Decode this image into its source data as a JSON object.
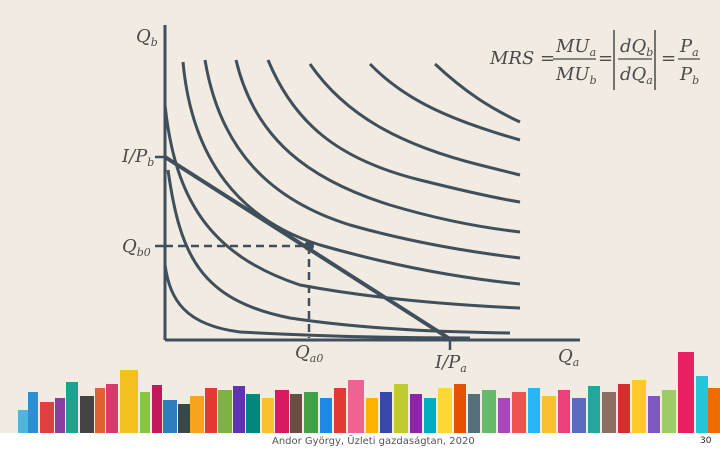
{
  "colors": {
    "background": "#f2ebe2",
    "curve": "#3f4f5c",
    "text": "#4a4a4a"
  },
  "axes": {
    "y_label_main": "Q",
    "y_label_sub": "b",
    "x_label_main": "Q",
    "x_label_sub": "a"
  },
  "annotations": {
    "income_b_main": "I/P",
    "income_b_sub": "b",
    "income_a_main": "I/P",
    "income_a_sub": "a",
    "qb0_main": "Q",
    "qb0_sub": "b0",
    "qa0_main": "Q",
    "qa0_sub": "a0"
  },
  "formula": {
    "lhs": "MRS =",
    "num1_main": "MU",
    "num1_sub": "a",
    "den1_main": "MU",
    "den1_sub": "b",
    "eq": "=",
    "num2_main": "dQ",
    "num2_sub": "b",
    "den2_main": "dQ",
    "den2_sub": "a",
    "eq2": "=",
    "num3_main": "P",
    "num3_sub": "a",
    "den3_main": "P",
    "den3_sub": "b"
  },
  "footer": {
    "author": "Andor György, Üzleti gazdaságtan, 2020",
    "page": "30"
  }
}
